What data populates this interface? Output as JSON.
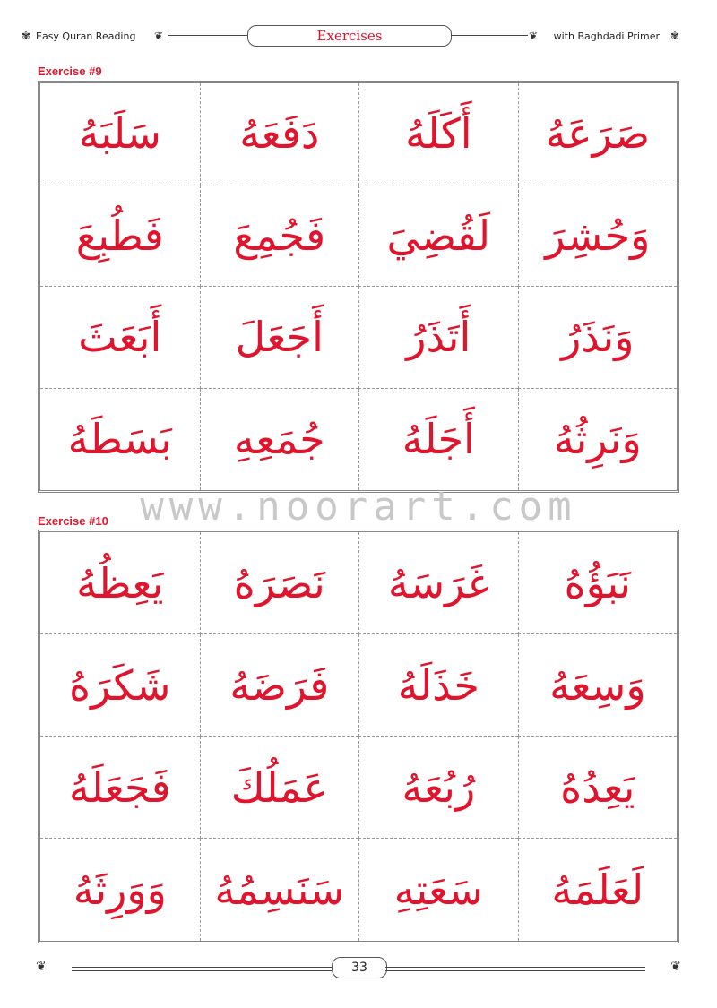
{
  "header": {
    "left_text": "Easy Quran Reading",
    "title": "Exercises",
    "right_text": "with Baghdadi Primer"
  },
  "accent_color": "#e0142c",
  "exercises": [
    {
      "label": "Exercise #9",
      "words": [
        "صَرَعَهُ",
        "أَكَلَهُ",
        "دَفَعَهُ",
        "سَلَبَهُ",
        "وَحُشِرَ",
        "لَقُضِيَ",
        "فَجُمِعَ",
        "فَطُبِعَ",
        "وَنَذَرُ",
        "أَتَذَرُ",
        "أَجَعَلَ",
        "أَبَعَثَ",
        "وَنَرِثُهُ",
        "أَجَلَهُ",
        "جُمَعِهِ",
        "بَسَطَهُ"
      ]
    },
    {
      "label": "Exercise #10",
      "words": [
        "نَبَؤُهُ",
        "غَرَسَهُ",
        "نَصَرَهُ",
        "يَعِظُهُ",
        "وَسِعَهُ",
        "خَذَلَهُ",
        "فَرَضَهُ",
        "شَكَرَهُ",
        "يَعِدُهُ",
        "رُبُعَهُ",
        "عَمَلُكَ",
        "فَجَعَلَهُ",
        "لَعَلَمَهُ",
        "سَعَتِهِ",
        "سَنَسِمُهُ",
        "وَوَرِثَهُ"
      ]
    }
  ],
  "watermark": "www.noorart.com",
  "footer": {
    "page_number": "33"
  }
}
